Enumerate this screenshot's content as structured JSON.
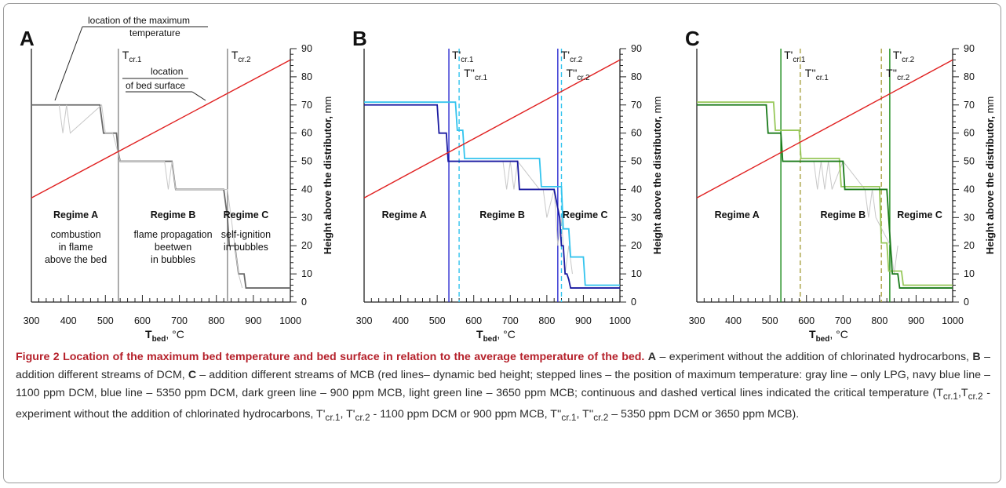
{
  "chart_data": [
    {
      "panel": "A",
      "type": "line",
      "xlabel": "T_bed, °C",
      "ylabel": "Height above the distributor, mm",
      "xlim": [
        300,
        1000
      ],
      "ylim": [
        0,
        90
      ],
      "xticks": [
        300,
        400,
        500,
        600,
        700,
        800,
        900,
        1000
      ],
      "yticks": [
        0,
        10,
        20,
        30,
        40,
        50,
        60,
        70,
        80,
        90
      ],
      "bed_surface": {
        "x": [
          300,
          1000
        ],
        "y": [
          37,
          86
        ]
      },
      "series": [
        {
          "color": "#6a6a6a",
          "x": [
            300,
            485,
            495,
            530,
            535,
            540,
            680,
            690,
            820,
            830,
            835,
            850,
            860,
            875,
            880,
            1000
          ],
          "y": [
            70,
            70,
            60,
            60,
            53,
            50,
            50,
            40,
            40,
            30,
            20,
            20,
            10,
            10,
            5,
            5
          ]
        },
        {
          "color": "#c8c8c8",
          "x": [
            375,
            385,
            395,
            405,
            490,
            500,
            520,
            540,
            660,
            670,
            680,
            690,
            830,
            840,
            850,
            860,
            870
          ],
          "y": [
            70,
            60,
            70,
            60,
            70,
            60,
            60,
            50,
            50,
            40,
            50,
            40,
            40,
            30,
            20,
            10,
            5
          ]
        }
      ],
      "vlines": [
        {
          "x": 535,
          "label_main": "T",
          "label_sub": "cr.1",
          "color": "#888888",
          "dash": false
        },
        {
          "x": 830,
          "label_main": "T",
          "label_sub": "cr.2",
          "color": "#888888",
          "dash": false
        }
      ],
      "regimes": [
        {
          "name": "Regime A",
          "desc": [
            "combustion",
            "in flame",
            "above the bed"
          ],
          "x": 420
        },
        {
          "name": "Regime B",
          "desc": [
            "flame propagation",
            "beetwen",
            "in bubbles"
          ],
          "x": 683
        },
        {
          "name": "Regime C",
          "desc": [
            "self-ignition",
            "in bubbles"
          ],
          "x": 880
        }
      ],
      "annotations": {
        "max_temp": [
          "location of the maximum",
          "temperature"
        ],
        "bed_surface": [
          "location",
          "of bed surface"
        ]
      }
    },
    {
      "panel": "B",
      "type": "line",
      "xlabel": "T_bed, °C",
      "ylabel": "Height above the distributor, mm",
      "xlim": [
        300,
        1000
      ],
      "ylim": [
        0,
        90
      ],
      "xticks": [
        300,
        400,
        500,
        600,
        700,
        800,
        900,
        1000
      ],
      "yticks": [
        0,
        10,
        20,
        30,
        40,
        50,
        60,
        70,
        80,
        90
      ],
      "bed_surface": {
        "x": [
          300,
          1000
        ],
        "y": [
          37,
          86
        ]
      },
      "series": [
        {
          "color": "#c8c8c8",
          "x": [
            680,
            690,
            700,
            710,
            720,
            780,
            790,
            800,
            820,
            830,
            840,
            850,
            860,
            870
          ],
          "y": [
            50,
            40,
            50,
            40,
            50,
            40,
            40,
            30,
            40,
            20,
            30,
            10,
            20,
            10
          ]
        },
        {
          "name": "1100 ppm DCM",
          "color": "#1a1aa0",
          "x": [
            300,
            500,
            505,
            525,
            530,
            720,
            725,
            820,
            835,
            840,
            845,
            850,
            855,
            860,
            865,
            1000
          ],
          "y": [
            70,
            70,
            60,
            60,
            50,
            50,
            40,
            40,
            30,
            20,
            20,
            10,
            10,
            8,
            5,
            5
          ]
        },
        {
          "name": "5350 ppm DCM",
          "color": "#33c4ee",
          "x": [
            300,
            550,
            555,
            570,
            575,
            780,
            785,
            840,
            845,
            860,
            865,
            900,
            905,
            1000
          ],
          "y": [
            71,
            71,
            61,
            61,
            51,
            51,
            41,
            41,
            26,
            26,
            16,
            16,
            6,
            6
          ]
        }
      ],
      "vlines": [
        {
          "x": 532,
          "label_main": "T'",
          "label_sub": "cr.1",
          "color": "#2a2ad0",
          "dash": false
        },
        {
          "x": 560,
          "label_main": "T''",
          "label_sub": "cr.1",
          "color": "#33c4ee",
          "dash": true
        },
        {
          "x": 830,
          "label_main": "T'",
          "label_sub": "cr.2",
          "color": "#2a2ad0",
          "dash": false
        },
        {
          "x": 840,
          "label_main": "T''",
          "label_sub": "cr.2",
          "color": "#33c4ee",
          "dash": true
        }
      ],
      "regimes": [
        {
          "name": "Regime A",
          "desc": [],
          "x": 410
        },
        {
          "name": "Regime B",
          "desc": [],
          "x": 678
        },
        {
          "name": "Regime C",
          "desc": [],
          "x": 905
        }
      ]
    },
    {
      "panel": "C",
      "type": "line",
      "xlabel": "T_bed, °C",
      "ylabel": "Height above the distributor, mm",
      "xlim": [
        300,
        1000
      ],
      "ylim": [
        0,
        90
      ],
      "xticks": [
        300,
        400,
        500,
        600,
        700,
        800,
        900,
        1000
      ],
      "yticks": [
        0,
        10,
        20,
        30,
        40,
        50,
        60,
        70,
        80,
        90
      ],
      "bed_surface": {
        "x": [
          300,
          1000
        ],
        "y": [
          37,
          86
        ]
      },
      "series": [
        {
          "color": "#c8c8c8",
          "x": [
            620,
            630,
            640,
            650,
            660,
            670,
            700,
            760,
            770,
            780,
            790,
            830,
            840,
            850
          ],
          "y": [
            50,
            40,
            50,
            40,
            50,
            40,
            50,
            40,
            30,
            40,
            30,
            20,
            10,
            20
          ]
        },
        {
          "name": "3650 ppm MCB",
          "color": "#98c85a",
          "x": [
            300,
            510,
            515,
            580,
            585,
            690,
            695,
            800,
            805,
            820,
            825,
            860,
            865,
            1000
          ],
          "y": [
            71,
            71,
            61,
            61,
            51,
            51,
            41,
            41,
            21,
            21,
            11,
            11,
            6,
            6
          ]
        },
        {
          "name": "900 ppm MCB",
          "color": "#1a7a1a",
          "x": [
            300,
            490,
            495,
            530,
            535,
            700,
            705,
            820,
            825,
            830,
            835,
            850,
            855,
            1000
          ],
          "y": [
            70,
            70,
            60,
            60,
            50,
            50,
            40,
            40,
            30,
            20,
            10,
            10,
            5,
            5
          ]
        }
      ],
      "vlines": [
        {
          "x": 530,
          "label_main": "T'",
          "label_sub": "cr.1",
          "color": "#1a8a1a",
          "dash": false
        },
        {
          "x": 583,
          "label_main": "T''",
          "label_sub": "cr.1",
          "color": "#a8a040",
          "dash": true
        },
        {
          "x": 805,
          "label_main": "T''",
          "label_sub": "cr.2",
          "color": "#a8a040",
          "dash": true
        },
        {
          "x": 828,
          "label_main": "T'",
          "label_sub": "cr.2",
          "color": "#1a8a1a",
          "dash": false
        }
      ],
      "regimes": [
        {
          "name": "Regime A",
          "desc": [],
          "x": 410
        },
        {
          "name": "Regime B",
          "desc": [],
          "x": 700
        },
        {
          "name": "Regime C",
          "desc": [],
          "x": 910
        }
      ]
    }
  ],
  "axis_text": {
    "xlabel_main": "T",
    "xlabel_sub": "bed",
    "xlabel_unit": ", °C",
    "ylabel_main": "Height above the distributor,",
    "ylabel_unit": "mm"
  },
  "caption": {
    "title": "Figure 2 Location of the maximum bed temperature and bed surface in relation to the average temperature of the bed.",
    "p1": "A",
    "p2": " – experiment without the addition of chlorinated hydrocarbons, ",
    "p3": "B",
    "p4": " – addition different streams of DCM, ",
    "p5": "C",
    "p6": " – addition different streams of MCB (red lines– dynamic bed height; stepped lines – the position of maximum temperature: gray line – only LPG, navy blue line – 1100 ppm DCM, blue line – 5350 ppm DCM, dark green line – 900 ppm MCB, light green line – 3650 ppm MCB; continuous and dashed vertical lines indicated the critical temperature (T",
    "s1": "cr.1",
    "p7": ",T",
    "s2": "cr.2",
    "p8": " - experiment without the addition of chlorinated hydrocarbons, T'",
    "s3": "cr.1",
    "p9": ", T'",
    "s4": "cr.2",
    "p10": " - 1100 ppm DCM or 900 ppm MCB, T''",
    "s5": "cr.1",
    "p11": ", T''",
    "s6": "cr.2",
    "p12": " – 5350 ppm DCM or 3650 ppm MCB)."
  },
  "colors": {
    "bed_line": "#e02020",
    "axis": "#222222"
  }
}
